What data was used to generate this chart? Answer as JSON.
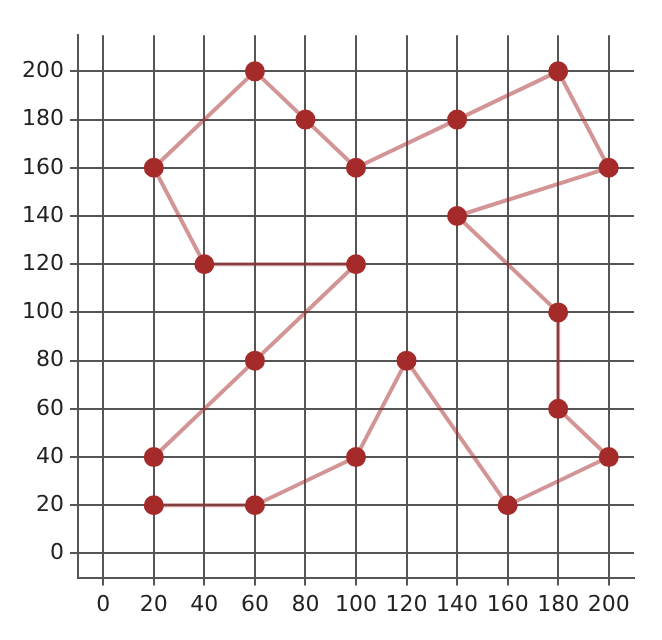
{
  "chart_data": {
    "type": "line",
    "xlim": [
      -10,
      210
    ],
    "ylim": [
      -10,
      215
    ],
    "xticks": [
      0,
      20,
      40,
      60,
      80,
      100,
      120,
      140,
      160,
      180,
      200
    ],
    "yticks": [
      0,
      20,
      40,
      60,
      80,
      100,
      120,
      140,
      160,
      180,
      200
    ],
    "grid": true,
    "marker": "circle",
    "line_style": "solid",
    "series": [
      {
        "color": "#a52a2a",
        "x": [
          20,
          60,
          100,
          120,
          160,
          200,
          180,
          180,
          140,
          200,
          180,
          140,
          100,
          80,
          60,
          20,
          40,
          100,
          60,
          20
        ],
        "values": [
          20,
          20,
          40,
          80,
          20,
          40,
          60,
          100,
          140,
          160,
          200,
          180,
          160,
          180,
          200,
          160,
          120,
          120,
          80,
          40
        ]
      }
    ]
  }
}
